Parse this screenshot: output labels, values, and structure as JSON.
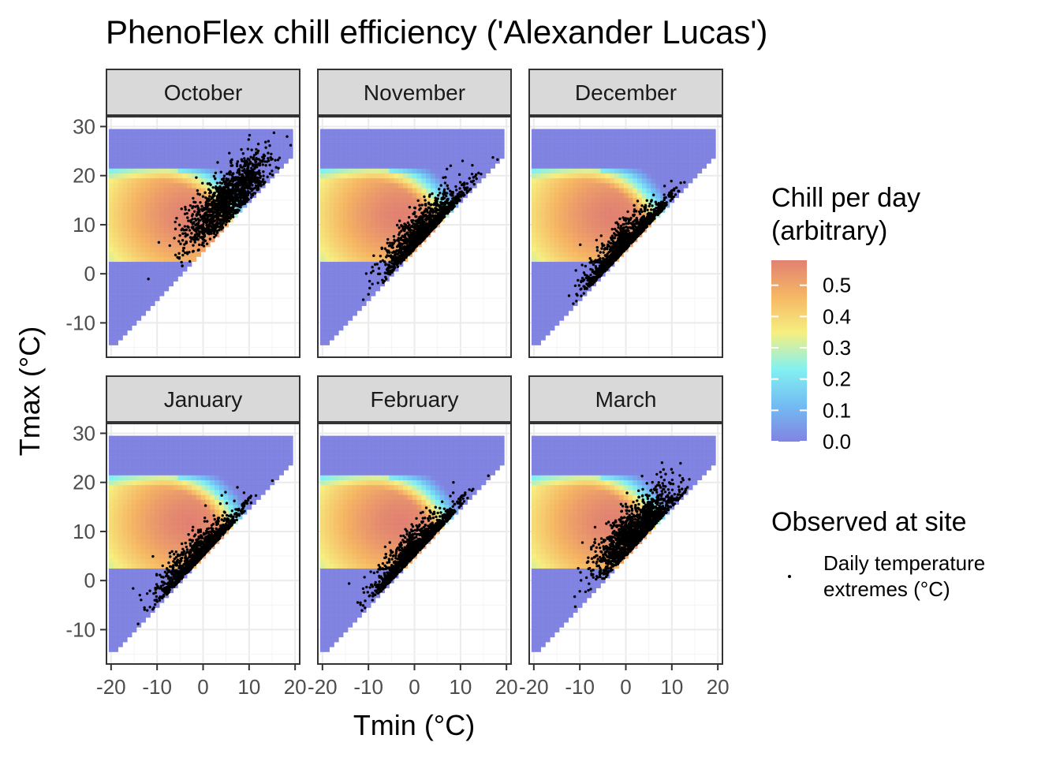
{
  "chart_data": {
    "type": "heatmap",
    "title": "PhenoFlex chill efficiency ('Alexander Lucas')",
    "xlabel": "Tmin (°C)",
    "ylabel": "Tmax (°C)",
    "xlim": [
      -21,
      21
    ],
    "ylim": [
      -17,
      32
    ],
    "x_ticks": [
      -20,
      -10,
      0,
      10,
      20
    ],
    "x_tick_labels": [
      "-20",
      "-10",
      "0",
      "10",
      "20"
    ],
    "y_ticks": [
      -10,
      0,
      10,
      20,
      30
    ],
    "y_tick_labels": [
      "-10",
      "0",
      "10",
      "20",
      "30"
    ],
    "grid": true,
    "facets": [
      "October",
      "November",
      "December",
      "January",
      "February",
      "March"
    ],
    "heatmap": {
      "tmin_range": [
        -20,
        19
      ],
      "tmax_range": [
        -14,
        29
      ],
      "high_chill_tmax_range": [
        3,
        21
      ],
      "peak_center": {
        "tmin": -3,
        "tmax": 12
      },
      "max_value": 0.58
    },
    "fill_legend": {
      "title": "Chill per day\n(arbitrary)",
      "title_lines": [
        "Chill per day",
        "(arbitrary)"
      ],
      "breaks": [
        0.5,
        0.4,
        0.3,
        0.2,
        0.1,
        0.0
      ],
      "break_labels": [
        "0.5",
        "0.4",
        "0.3",
        "0.2",
        "0.1",
        "0.0"
      ],
      "range": [
        0.0,
        0.58
      ],
      "colors": [
        "#7b7de0",
        "#6bb8f2",
        "#7df0f0",
        "#f5ee7a",
        "#f5b35c",
        "#e07b6b"
      ]
    },
    "point_legend": {
      "title": "Observed at site",
      "label_lines": [
        "Daily temperature",
        "extremes (°C)"
      ]
    },
    "observed_clouds": [
      {
        "month": "October",
        "tmin_mean": 5,
        "tmax_mean": 15,
        "n": 1400
      },
      {
        "month": "November",
        "tmin_mean": 2,
        "tmax_mean": 8,
        "n": 1400
      },
      {
        "month": "December",
        "tmin_mean": 0,
        "tmax_mean": 5,
        "n": 1300
      },
      {
        "month": "January",
        "tmin_mean": -1,
        "tmax_mean": 4,
        "n": 1300
      },
      {
        "month": "February",
        "tmin_mean": 0,
        "tmax_mean": 5,
        "n": 1300
      },
      {
        "month": "March",
        "tmin_mean": 2,
        "tmax_mean": 10,
        "n": 1400
      }
    ]
  }
}
